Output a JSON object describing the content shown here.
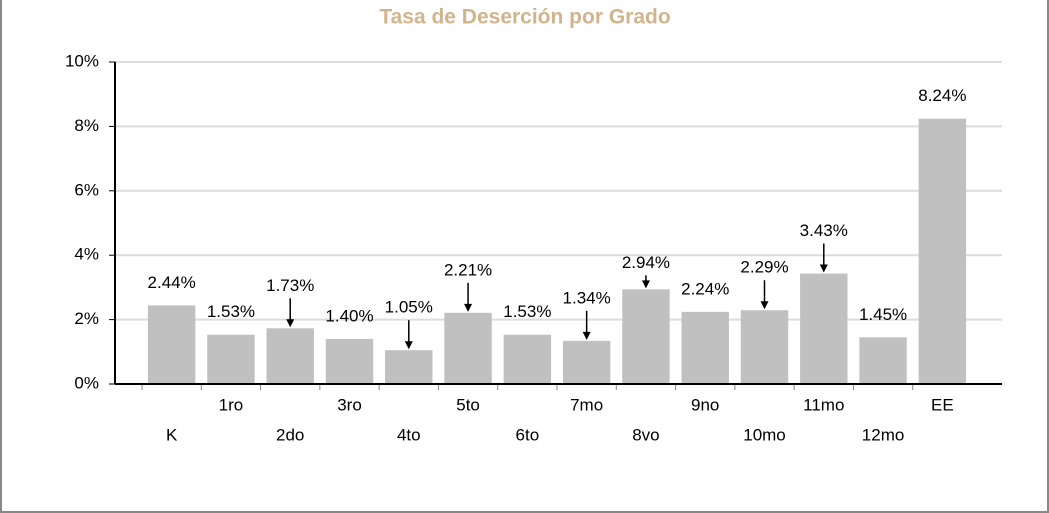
{
  "chart_data": {
    "type": "bar",
    "title": "Tasa de Deserción por Grado",
    "categories": [
      "K",
      "1ro",
      "2do",
      "3ro",
      "4to",
      "5to",
      "6to",
      "7mo",
      "8vo",
      "9no",
      "10mo",
      "11mo",
      "12mo",
      "EE"
    ],
    "values": [
      2.44,
      1.53,
      1.73,
      1.4,
      1.05,
      2.21,
      1.53,
      1.34,
      2.94,
      2.24,
      2.29,
      3.43,
      1.45,
      8.24
    ],
    "value_labels": [
      "2.44%",
      "1.53%",
      "1.73%",
      "1.40%",
      "1.05%",
      "2.21%",
      "1.53%",
      "1.34%",
      "2.94%",
      "2.24%",
      "2.29%",
      "3.43%",
      "1.45%",
      "8.24%"
    ],
    "color": "#c0c0c0",
    "ylim": [
      0,
      10
    ],
    "yticks": [
      {
        "value": 0,
        "label": "0%"
      },
      {
        "value": 2,
        "label": "2%"
      },
      {
        "value": 4,
        "label": "4%"
      },
      {
        "value": 6,
        "label": "6%"
      },
      {
        "value": 8,
        "label": "8%"
      },
      {
        "value": 10,
        "label": "10%"
      }
    ],
    "grid": true
  }
}
